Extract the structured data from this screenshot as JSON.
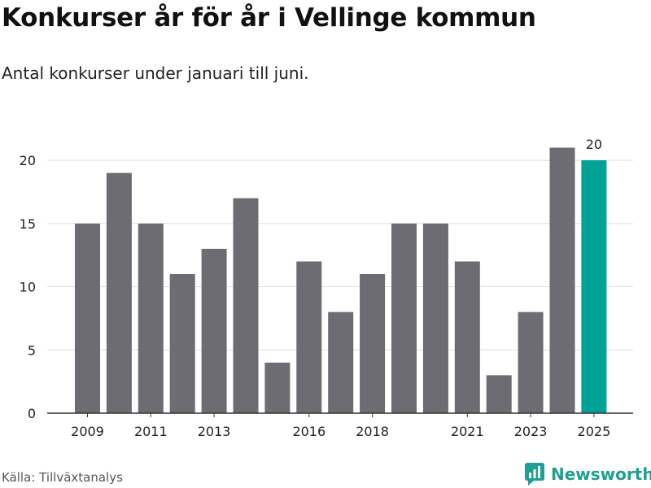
{
  "title": "Konkurser år för år i Vellinge kommun",
  "subtitle": "Antal konkurser under januari till juni.",
  "source": "Källa: Tillväxtanalys",
  "brand": {
    "name": "Newsworthy",
    "icon": "newsworthy-logo-icon"
  },
  "colors": {
    "bar": "#6d6c72",
    "highlight": "#00a296",
    "grid": "#dddddd",
    "axis": "#333333"
  },
  "chart_data": {
    "type": "bar",
    "categories": [
      "2009",
      "2010",
      "2011",
      "2012",
      "2013",
      "2014",
      "2015",
      "2016",
      "2017",
      "2018",
      "2019",
      "2020",
      "2021",
      "2022",
      "2023",
      "2024",
      "2025"
    ],
    "values": [
      15,
      19,
      15,
      11,
      13,
      17,
      4,
      12,
      8,
      11,
      15,
      15,
      12,
      3,
      8,
      21,
      20
    ],
    "x_tick_labels": [
      "2009",
      "2011",
      "2013",
      "2016",
      "2018",
      "2021",
      "2023",
      "2025"
    ],
    "y_ticks": [
      0,
      5,
      10,
      15,
      20
    ],
    "ylim": [
      0,
      22
    ],
    "highlight_category": "2025",
    "data_labels": [
      {
        "category": "2025",
        "text": "20"
      }
    ],
    "grid": true,
    "legend": "none",
    "xlabel": "",
    "ylabel": ""
  }
}
